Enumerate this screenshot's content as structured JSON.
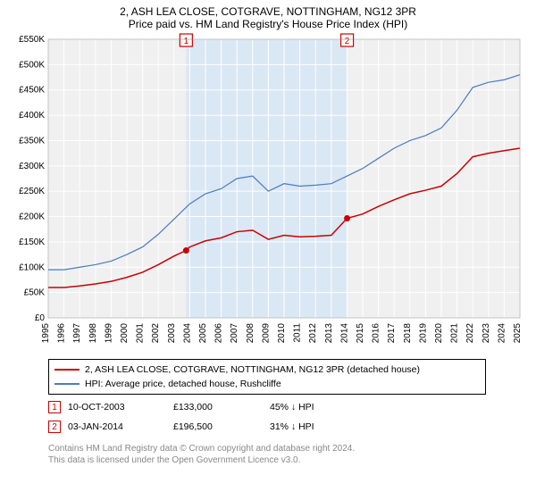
{
  "title": {
    "line1": "2, ASH LEA CLOSE, COTGRAVE, NOTTINGHAM, NG12 3PR",
    "line2": "Price paid vs. HM Land Registry's House Price Index (HPI)"
  },
  "chart": {
    "type": "line",
    "plot_bg": "#f0f0f0",
    "grid_color": "#ffffff",
    "shade_color": "#d5e5f5",
    "x_years": [
      "1995",
      "1996",
      "1997",
      "1998",
      "1999",
      "2000",
      "2001",
      "2002",
      "2003",
      "2004",
      "2005",
      "2006",
      "2007",
      "2008",
      "2009",
      "2010",
      "2011",
      "2012",
      "2013",
      "2014",
      "2015",
      "2016",
      "2017",
      "2018",
      "2019",
      "2020",
      "2021",
      "2022",
      "2023",
      "2024",
      "2025"
    ],
    "y_ticks": [
      0,
      50000,
      100000,
      150000,
      200000,
      250000,
      300000,
      350000,
      400000,
      450000,
      500000,
      550000
    ],
    "y_tick_labels": [
      "£0",
      "£50K",
      "£100K",
      "£150K",
      "£200K",
      "£250K",
      "£300K",
      "£350K",
      "£400K",
      "£450K",
      "£500K",
      "£550K"
    ],
    "y_min": 0,
    "y_max": 550000,
    "x_min": 1995,
    "x_max": 2025,
    "shade_x1": 2003.77,
    "shade_x2": 2014.01,
    "series_hpi": {
      "color": "#4a7bc4",
      "data": [
        [
          1995,
          95000
        ],
        [
          1996,
          95000
        ],
        [
          1997,
          100000
        ],
        [
          1998,
          105000
        ],
        [
          1999,
          112000
        ],
        [
          2000,
          125000
        ],
        [
          2001,
          140000
        ],
        [
          2002,
          165000
        ],
        [
          2003,
          195000
        ],
        [
          2004,
          225000
        ],
        [
          2005,
          245000
        ],
        [
          2006,
          255000
        ],
        [
          2007,
          275000
        ],
        [
          2008,
          280000
        ],
        [
          2009,
          250000
        ],
        [
          2010,
          265000
        ],
        [
          2011,
          260000
        ],
        [
          2012,
          262000
        ],
        [
          2013,
          265000
        ],
        [
          2014,
          280000
        ],
        [
          2015,
          295000
        ],
        [
          2016,
          315000
        ],
        [
          2017,
          335000
        ],
        [
          2018,
          350000
        ],
        [
          2019,
          360000
        ],
        [
          2020,
          375000
        ],
        [
          2021,
          410000
        ],
        [
          2022,
          455000
        ],
        [
          2023,
          465000
        ],
        [
          2024,
          470000
        ],
        [
          2025,
          480000
        ]
      ]
    },
    "series_price": {
      "color": "#cc0000",
      "data": [
        [
          1995,
          60000
        ],
        [
          1996,
          60000
        ],
        [
          1997,
          63000
        ],
        [
          1998,
          67000
        ],
        [
          1999,
          72000
        ],
        [
          2000,
          80000
        ],
        [
          2001,
          90000
        ],
        [
          2002,
          105000
        ],
        [
          2003,
          122000
        ],
        [
          2003.77,
          133000
        ],
        [
          2004,
          140000
        ],
        [
          2005,
          152000
        ],
        [
          2006,
          158000
        ],
        [
          2007,
          170000
        ],
        [
          2008,
          173000
        ],
        [
          2009,
          155000
        ],
        [
          2010,
          163000
        ],
        [
          2011,
          160000
        ],
        [
          2012,
          161000
        ],
        [
          2013,
          163000
        ],
        [
          2014.01,
          196500
        ],
        [
          2015,
          205000
        ],
        [
          2016,
          220000
        ],
        [
          2017,
          233000
        ],
        [
          2018,
          245000
        ],
        [
          2019,
          252000
        ],
        [
          2020,
          260000
        ],
        [
          2021,
          285000
        ],
        [
          2022,
          318000
        ],
        [
          2023,
          325000
        ],
        [
          2024,
          330000
        ],
        [
          2025,
          335000
        ]
      ]
    },
    "markers": [
      {
        "n": "1",
        "x": 2003.77,
        "y": 133000
      },
      {
        "n": "2",
        "x": 2014.01,
        "y": 196500
      }
    ],
    "axis_fontsize": 10
  },
  "legend": {
    "items": [
      {
        "color": "#cc0000",
        "label": "2, ASH LEA CLOSE, COTGRAVE, NOTTINGHAM, NG12 3PR (detached house)"
      },
      {
        "color": "#4a7bc4",
        "label": "HPI: Average price, detached house, Rushcliffe"
      }
    ]
  },
  "sales": [
    {
      "n": "1",
      "date": "10-OCT-2003",
      "price": "£133,000",
      "diff": "45% ↓ HPI"
    },
    {
      "n": "2",
      "date": "03-JAN-2014",
      "price": "£196,500",
      "diff": "31% ↓ HPI"
    }
  ],
  "footer": {
    "line1": "Contains HM Land Registry data © Crown copyright and database right 2024.",
    "line2": "This data is licensed under the Open Government Licence v3.0."
  }
}
